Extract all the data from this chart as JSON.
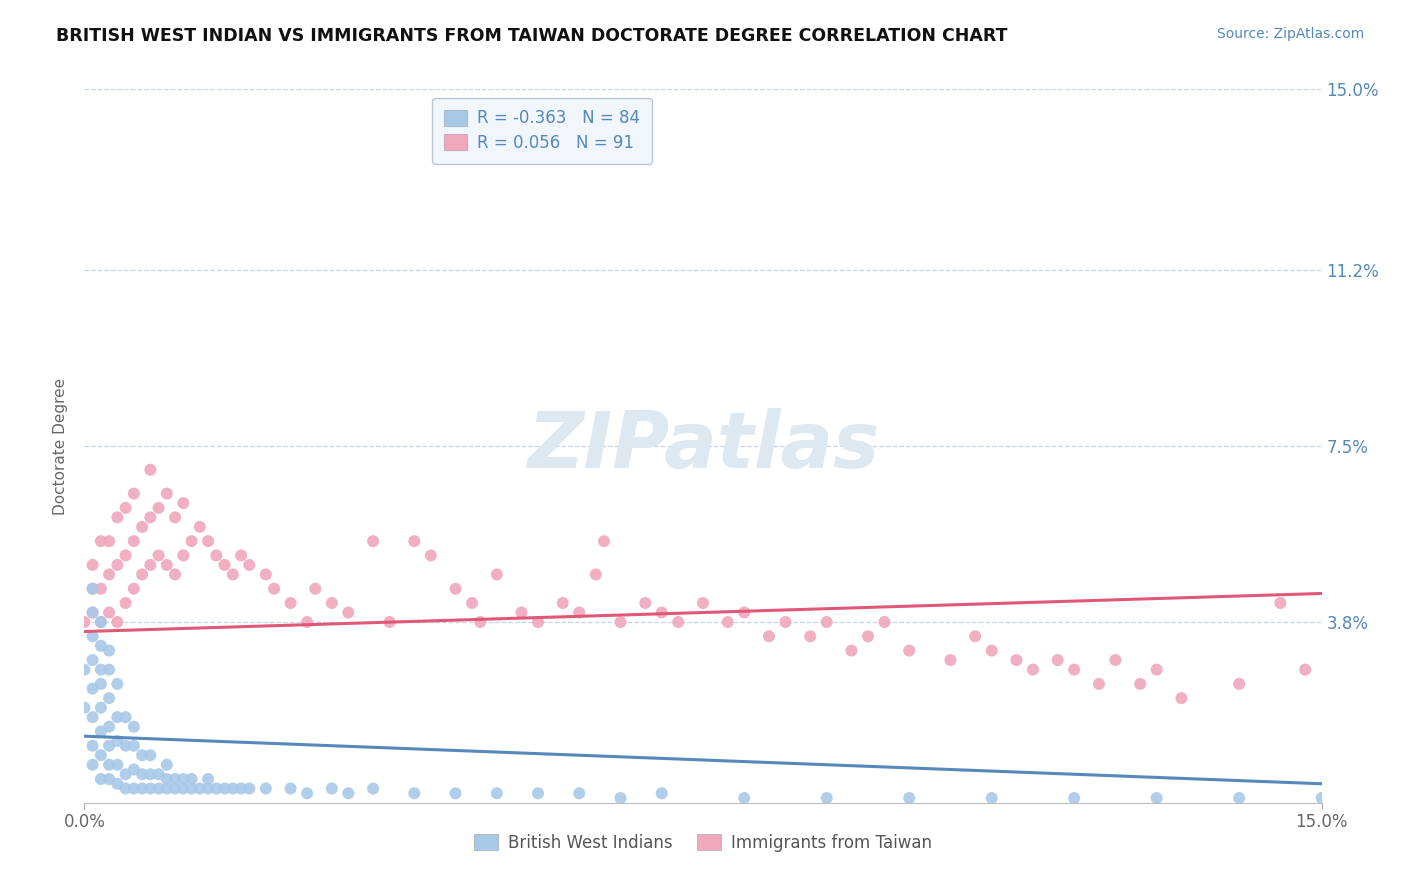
{
  "title": "BRITISH WEST INDIAN VS IMMIGRANTS FROM TAIWAN DOCTORATE DEGREE CORRELATION CHART",
  "source": "Source: ZipAtlas.com",
  "ylabel": "Doctorate Degree",
  "xlim": [
    0.0,
    0.15
  ],
  "ylim": [
    0.0,
    0.15
  ],
  "ytick_labels_right": [
    "3.8%",
    "7.5%",
    "11.2%",
    "15.0%"
  ],
  "ytick_values_right": [
    0.038,
    0.075,
    0.112,
    0.15
  ],
  "blue_R": -0.363,
  "blue_N": 84,
  "pink_R": 0.056,
  "pink_N": 91,
  "blue_color": "#a8c8e8",
  "pink_color": "#f0a8bc",
  "blue_line_color": "#5588bb",
  "pink_line_color": "#e05878",
  "blue_scatter_x": [
    0.0,
    0.0,
    0.001,
    0.001,
    0.001,
    0.001,
    0.001,
    0.001,
    0.001,
    0.001,
    0.002,
    0.002,
    0.002,
    0.002,
    0.002,
    0.002,
    0.002,
    0.002,
    0.003,
    0.003,
    0.003,
    0.003,
    0.003,
    0.003,
    0.003,
    0.004,
    0.004,
    0.004,
    0.004,
    0.004,
    0.005,
    0.005,
    0.005,
    0.005,
    0.006,
    0.006,
    0.006,
    0.006,
    0.007,
    0.007,
    0.007,
    0.008,
    0.008,
    0.008,
    0.009,
    0.009,
    0.01,
    0.01,
    0.01,
    0.011,
    0.011,
    0.012,
    0.012,
    0.013,
    0.013,
    0.014,
    0.015,
    0.015,
    0.016,
    0.017,
    0.018,
    0.019,
    0.02,
    0.022,
    0.025,
    0.027,
    0.03,
    0.032,
    0.035,
    0.04,
    0.045,
    0.05,
    0.055,
    0.06,
    0.065,
    0.07,
    0.08,
    0.09,
    0.1,
    0.11,
    0.12,
    0.13,
    0.14,
    0.15
  ],
  "blue_scatter_y": [
    0.02,
    0.028,
    0.008,
    0.012,
    0.018,
    0.024,
    0.03,
    0.035,
    0.04,
    0.045,
    0.005,
    0.01,
    0.015,
    0.02,
    0.025,
    0.028,
    0.033,
    0.038,
    0.005,
    0.008,
    0.012,
    0.016,
    0.022,
    0.028,
    0.032,
    0.004,
    0.008,
    0.013,
    0.018,
    0.025,
    0.003,
    0.006,
    0.012,
    0.018,
    0.003,
    0.007,
    0.012,
    0.016,
    0.003,
    0.006,
    0.01,
    0.003,
    0.006,
    0.01,
    0.003,
    0.006,
    0.003,
    0.005,
    0.008,
    0.003,
    0.005,
    0.003,
    0.005,
    0.003,
    0.005,
    0.003,
    0.003,
    0.005,
    0.003,
    0.003,
    0.003,
    0.003,
    0.003,
    0.003,
    0.003,
    0.002,
    0.003,
    0.002,
    0.003,
    0.002,
    0.002,
    0.002,
    0.002,
    0.002,
    0.001,
    0.002,
    0.001,
    0.001,
    0.001,
    0.001,
    0.001,
    0.001,
    0.001,
    0.001
  ],
  "pink_scatter_x": [
    0.0,
    0.001,
    0.001,
    0.001,
    0.002,
    0.002,
    0.002,
    0.003,
    0.003,
    0.003,
    0.004,
    0.004,
    0.004,
    0.005,
    0.005,
    0.005,
    0.006,
    0.006,
    0.006,
    0.007,
    0.007,
    0.008,
    0.008,
    0.008,
    0.009,
    0.009,
    0.01,
    0.01,
    0.011,
    0.011,
    0.012,
    0.012,
    0.013,
    0.014,
    0.015,
    0.016,
    0.017,
    0.018,
    0.019,
    0.02,
    0.022,
    0.023,
    0.025,
    0.027,
    0.028,
    0.03,
    0.032,
    0.035,
    0.037,
    0.04,
    0.042,
    0.045,
    0.047,
    0.048,
    0.05,
    0.053,
    0.055,
    0.058,
    0.06,
    0.062,
    0.063,
    0.065,
    0.068,
    0.07,
    0.072,
    0.075,
    0.078,
    0.08,
    0.083,
    0.085,
    0.088,
    0.09,
    0.093,
    0.095,
    0.097,
    0.1,
    0.105,
    0.108,
    0.11,
    0.113,
    0.115,
    0.118,
    0.12,
    0.123,
    0.125,
    0.128,
    0.13,
    0.133,
    0.14,
    0.145,
    0.148
  ],
  "pink_scatter_y": [
    0.038,
    0.04,
    0.045,
    0.05,
    0.038,
    0.045,
    0.055,
    0.04,
    0.048,
    0.055,
    0.038,
    0.05,
    0.06,
    0.042,
    0.052,
    0.062,
    0.045,
    0.055,
    0.065,
    0.048,
    0.058,
    0.05,
    0.06,
    0.07,
    0.052,
    0.062,
    0.05,
    0.065,
    0.048,
    0.06,
    0.052,
    0.063,
    0.055,
    0.058,
    0.055,
    0.052,
    0.05,
    0.048,
    0.052,
    0.05,
    0.048,
    0.045,
    0.042,
    0.038,
    0.045,
    0.042,
    0.04,
    0.055,
    0.038,
    0.055,
    0.052,
    0.045,
    0.042,
    0.038,
    0.048,
    0.04,
    0.038,
    0.042,
    0.04,
    0.048,
    0.055,
    0.038,
    0.042,
    0.04,
    0.038,
    0.042,
    0.038,
    0.04,
    0.035,
    0.038,
    0.035,
    0.038,
    0.032,
    0.035,
    0.038,
    0.032,
    0.03,
    0.035,
    0.032,
    0.03,
    0.028,
    0.03,
    0.028,
    0.025,
    0.03,
    0.025,
    0.028,
    0.022,
    0.025,
    0.042,
    0.028
  ],
  "blue_trend_x": [
    0.0,
    0.15
  ],
  "blue_trend_y": [
    0.014,
    0.004
  ],
  "pink_trend_x": [
    0.0,
    0.15
  ],
  "pink_trend_y": [
    0.036,
    0.044
  ],
  "background_color": "#ffffff",
  "grid_color": "#c8d4e8",
  "title_color": "#111111",
  "axis_label_color": "#5588bb",
  "legend_box_facecolor": "#eef4fc",
  "legend_box_edgecolor": "#aabbcc",
  "watermark_color": "#dde8f0"
}
